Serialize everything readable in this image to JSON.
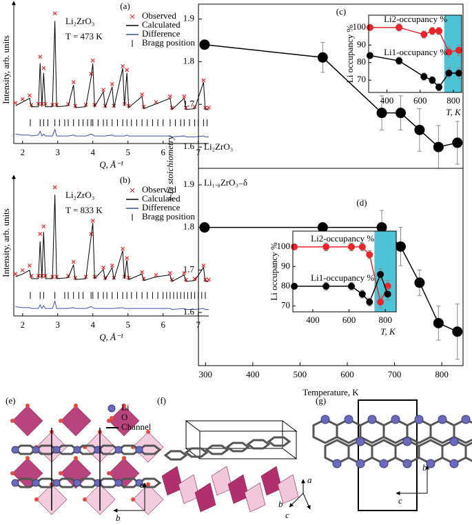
{
  "chart_data": [
    {
      "type": "diffraction",
      "label": "(a)",
      "annotation": [
        "Li₂ZrO₃",
        "T = 473 K"
      ],
      "x": [
        1.8,
        2.0,
        2.2,
        2.25,
        2.45,
        2.5,
        2.55,
        2.6,
        2.65,
        2.85,
        2.92,
        2.97,
        3.3,
        3.45,
        3.5,
        3.8,
        3.95,
        4.0,
        4.05,
        4.3,
        4.35,
        4.55,
        4.6,
        4.85,
        4.9,
        4.97,
        5.02,
        5.4,
        5.45,
        5.8,
        6.2,
        6.25,
        6.6,
        6.65,
        6.9,
        7.15,
        7.2,
        7.3
      ],
      "series": [
        {
          "name": "Observed",
          "color": "#e8262a",
          "values": [
            13,
            17,
            21,
            11,
            12,
            62,
            12,
            50,
            12,
            11,
            108,
            11,
            12,
            35,
            10,
            11,
            44,
            58,
            11,
            27,
            10,
            33,
            10,
            52,
            12,
            48,
            10,
            22,
            9,
            14,
            20,
            8,
            20,
            8,
            9,
            37,
            8,
            8
          ]
        },
        {
          "name": "Calculated",
          "color": "#000000",
          "values": [
            10,
            14,
            18,
            9,
            9,
            55,
            9,
            45,
            9,
            9,
            100,
            9,
            10,
            32,
            8,
            9,
            40,
            55,
            9,
            25,
            8,
            30,
            8,
            50,
            10,
            45,
            8,
            20,
            7,
            12,
            18,
            6,
            18,
            6,
            7,
            35,
            6,
            6
          ]
        },
        {
          "name": "Difference",
          "color": "#3a4fa8",
          "values": [
            -20,
            -21,
            -21,
            -22,
            -21,
            -17,
            -22,
            -20,
            -22,
            -22,
            -15,
            -22,
            -22,
            -21,
            -22,
            -22,
            -20,
            -21,
            -22,
            -22,
            -22,
            -21,
            -22,
            -22,
            -22,
            -21,
            -22,
            -22,
            -22,
            -22,
            -22,
            -23,
            -22,
            -23,
            -23,
            -22,
            -23,
            -23
          ]
        }
      ],
      "bragg": {
        "name": "Bragg position",
        "values": [
          2.22,
          2.5,
          2.6,
          2.72,
          2.92,
          3.05,
          3.2,
          3.3,
          3.45,
          3.6,
          3.72,
          3.85,
          3.95,
          4.0,
          4.15,
          4.3,
          4.4,
          4.55,
          4.7,
          4.85,
          4.97,
          5.1,
          5.25,
          5.4,
          5.55,
          5.7,
          5.85,
          6.0,
          6.2,
          6.35,
          6.5,
          6.6,
          6.75,
          6.9,
          7.0,
          7.15,
          7.25
        ]
      },
      "xlim": [
        1.75,
        7.3
      ],
      "xticks": [
        2,
        3,
        4,
        5,
        6,
        7
      ],
      "ylim": [
        -30,
        112
      ],
      "x_label": "Q, Å⁻¹",
      "y_label": "Intensity, arb. units"
    },
    {
      "type": "diffraction",
      "label": "(b)",
      "annotation": [
        "Li₂ZrO₃",
        "T = 833 K"
      ],
      "x": [
        1.8,
        2.0,
        2.2,
        2.25,
        2.45,
        2.5,
        2.55,
        2.6,
        2.65,
        2.85,
        2.92,
        2.97,
        3.3,
        3.45,
        3.5,
        3.8,
        3.95,
        4.0,
        4.05,
        4.3,
        4.35,
        4.55,
        4.6,
        4.85,
        4.9,
        4.97,
        5.02,
        5.4,
        5.45,
        5.8,
        6.2,
        6.25,
        6.6,
        6.65,
        6.9,
        7.15,
        7.2,
        7.3
      ],
      "series": [
        {
          "name": "Observed",
          "color": "#e8262a",
          "values": [
            15,
            19,
            24,
            13,
            13,
            58,
            13,
            66,
            13,
            12,
            108,
            12,
            13,
            28,
            11,
            12,
            58,
            72,
            12,
            22,
            11,
            24,
            11,
            42,
            12,
            32,
            11,
            17,
            10,
            14,
            16,
            9,
            16,
            9,
            10,
            24,
            9,
            9
          ]
        },
        {
          "name": "Calculated",
          "color": "#000000",
          "values": [
            12,
            15,
            19,
            10,
            10,
            50,
            10,
            60,
            10,
            10,
            100,
            10,
            11,
            25,
            9,
            10,
            55,
            70,
            10,
            20,
            9,
            22,
            9,
            40,
            10,
            30,
            9,
            15,
            8,
            12,
            14,
            7,
            14,
            7,
            8,
            22,
            7,
            7
          ]
        },
        {
          "name": "Difference",
          "color": "#3a4fa8",
          "values": [
            -20,
            -21,
            -21,
            -22,
            -22,
            -18,
            -22,
            -19,
            -22,
            -22,
            -14,
            -22,
            -22,
            -21,
            -22,
            -22,
            -20,
            -21,
            -22,
            -22,
            -22,
            -22,
            -22,
            -21,
            -22,
            -22,
            -22,
            -22,
            -22,
            -22,
            -22,
            -23,
            -22,
            -23,
            -23,
            -22,
            -23,
            -23
          ]
        }
      ],
      "bragg": {
        "name": "Bragg position",
        "values": [
          2.22,
          2.5,
          2.6,
          2.92,
          3.2,
          3.3,
          3.45,
          3.6,
          3.72,
          3.95,
          4.0,
          4.15,
          4.3,
          4.4,
          4.55,
          4.7,
          4.85,
          4.97,
          5.1,
          5.25,
          5.4,
          5.55,
          5.7,
          5.85,
          6.0,
          6.1,
          6.2,
          6.3,
          6.4,
          6.5,
          6.6,
          6.7,
          6.8,
          6.9,
          7.0,
          7.1,
          7.2
        ]
      },
      "xlim": [
        1.75,
        7.3
      ],
      "xticks": [
        2,
        3,
        4,
        5,
        6,
        7
      ],
      "ylim": [
        -30,
        112
      ],
      "x_label": "Q, Å⁻¹",
      "y_label": "Intensity, arb. units"
    },
    {
      "type": "stoichiometry",
      "label": "(c)",
      "annotation": "Li₂ZrO₃",
      "y_label": "x-Li stoichiometry",
      "x": [
        298,
        548,
        673,
        713,
        753,
        793,
        833
      ],
      "values": [
        1.84,
        1.81,
        1.68,
        1.68,
        1.64,
        1.6,
        1.61
      ],
      "errors": [
        0.01,
        0.035,
        0.04,
        0.04,
        0.05,
        0.05,
        0.05
      ],
      "color": "#000000",
      "xlim": [
        285,
        845
      ],
      "ylim": [
        1.55,
        1.935
      ],
      "yticks": [
        1.6,
        1.7,
        1.8,
        1.9
      ],
      "inset": {
        "x": [
          298,
          473,
          623,
          673,
          713,
          773,
          833
        ],
        "series": [
          {
            "name": "Li2-occupancy %",
            "color": "#e8262a",
            "values": [
              100,
              100,
              96,
              98,
              98,
              86,
              87
            ],
            "errors": [
              1,
              2,
              2,
              2,
              2,
              3,
              3
            ]
          },
          {
            "name": "Li1-occupancy %",
            "color": "#000000",
            "values": [
              84,
              81,
              72,
              70,
              66,
              74,
              74
            ],
            "errors": [
              1,
              2,
              2,
              2,
              2,
              3,
              3
            ]
          }
        ],
        "xlim": [
          290,
          850
        ],
        "xticks": [
          400,
          600,
          800
        ],
        "ylim": [
          63,
          107
        ],
        "yticks": [
          70,
          80,
          90,
          100
        ],
        "x_label": "T, K",
        "y_label": "Li occupancy %",
        "highlight": [
          745,
          850
        ],
        "highlight_color": "#4fc3d6"
      }
    },
    {
      "type": "stoichiometry",
      "label": "(d)",
      "annotation": "Li₁.₈ZrO₃₋δ",
      "x_label": "Temperature, K",
      "x": [
        298,
        548,
        673,
        713,
        753,
        793,
        833
      ],
      "values": [
        1.8,
        1.8,
        1.8,
        1.755,
        1.67,
        1.575,
        1.555
      ],
      "errors": [
        0.01,
        0.01,
        0.04,
        0.045,
        0.03,
        0.04,
        0.065
      ],
      "color": "#000000",
      "xlim": [
        285,
        845
      ],
      "xticks": [
        300,
        400,
        500,
        600,
        700,
        800
      ],
      "ylim": [
        1.475,
        1.939
      ],
      "yticks": [
        1.6,
        1.7,
        1.8,
        1.9
      ],
      "inset": {
        "x": [
          298,
          473,
          613,
          673,
          713,
          773,
          813
        ],
        "series": [
          {
            "name": "Li2-occupancy %",
            "color": "#e8262a",
            "values": [
              100,
              100,
              100,
              100,
              96,
              72,
              80
            ],
            "errors": [
              1,
              2,
              2,
              2,
              2,
              3,
              3
            ]
          },
          {
            "name": "Li1-occupancy %",
            "color": "#000000",
            "values": [
              80,
              80,
              80,
              76,
              72,
              86,
              76
            ],
            "errors": [
              1,
              2,
              2,
              2,
              2,
              3,
              3
            ]
          }
        ],
        "xlim": [
          290,
          860
        ],
        "xticks": [
          400,
          600,
          800
        ],
        "ylim": [
          67,
          108
        ],
        "yticks": [
          70,
          80,
          90,
          100
        ],
        "x_label": "T, K",
        "y_label": "Li occupancy %",
        "highlight": [
          740,
          860
        ],
        "highlight_color": "#4fc3d6"
      }
    }
  ],
  "structures": {
    "e": {
      "label": "(e)",
      "legend": [
        "Li",
        "O",
        "Channel"
      ],
      "axes": [
        "a",
        "b"
      ]
    },
    "f": {
      "label": "(f)",
      "axes": [
        "a",
        "b",
        "c"
      ]
    },
    "g": {
      "label": "(g)",
      "axes": [
        "b",
        "c"
      ]
    }
  }
}
